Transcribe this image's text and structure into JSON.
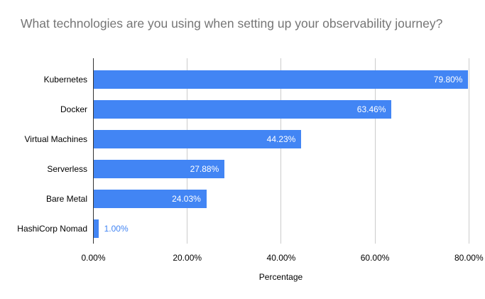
{
  "chart_data": {
    "type": "bar",
    "orientation": "horizontal",
    "title": "What technologies are you using when setting up your observability journey?",
    "categories": [
      "Kubernetes",
      "Docker",
      "Virtual Machines",
      "Serverless",
      "Bare Metal",
      "HashiCorp Nomad"
    ],
    "values": [
      79.8,
      63.46,
      44.23,
      27.88,
      24.03,
      1.0
    ],
    "value_labels": [
      "79.80%",
      "63.46%",
      "44.23%",
      "27.88%",
      "24.03%",
      "1.00%"
    ],
    "xlabel": "Percentage",
    "xlim": [
      0,
      80
    ],
    "x_tick_values": [
      0,
      20,
      40,
      60,
      80
    ],
    "x_tick_labels": [
      "0.00%",
      "20.00%",
      "40.00%",
      "60.00%",
      "80.00%"
    ],
    "grid": true,
    "legend": "none",
    "colors": {
      "bar": "#4285f4",
      "title_text": "#757575",
      "gridline": "#cccccc",
      "zero_axis_line": "#333333",
      "value_label_inside": "#ffffff",
      "value_label_outside": "#4285f4",
      "axis_text": "#000000"
    }
  }
}
